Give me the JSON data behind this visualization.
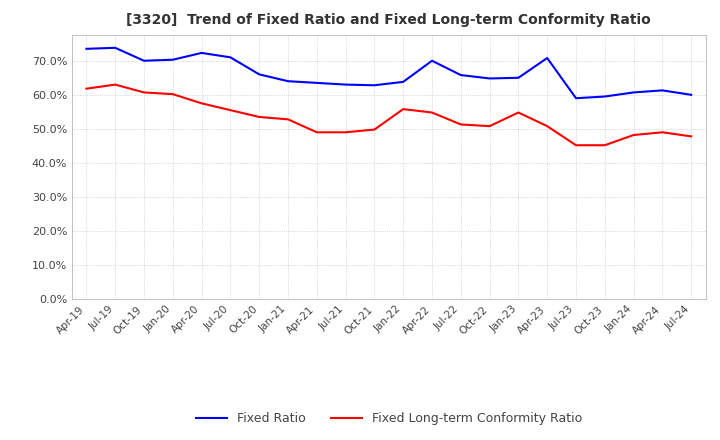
{
  "title": "[3320]  Trend of Fixed Ratio and Fixed Long-term Conformity Ratio",
  "x_labels": [
    "Apr-19",
    "Jul-19",
    "Oct-19",
    "Jan-20",
    "Apr-20",
    "Jul-20",
    "Oct-20",
    "Jan-21",
    "Apr-21",
    "Jul-21",
    "Oct-21",
    "Jan-22",
    "Apr-22",
    "Jul-22",
    "Oct-22",
    "Jan-23",
    "Apr-23",
    "Jul-23",
    "Oct-23",
    "Jan-24",
    "Apr-24",
    "Jul-24"
  ],
  "fixed_ratio": [
    0.735,
    0.738,
    0.7,
    0.703,
    0.723,
    0.71,
    0.66,
    0.64,
    0.635,
    0.63,
    0.628,
    0.638,
    0.7,
    0.658,
    0.648,
    0.65,
    0.708,
    0.59,
    0.595,
    0.607,
    0.613,
    0.6
  ],
  "fixed_lt_ratio": [
    0.618,
    0.63,
    0.607,
    0.602,
    0.575,
    0.555,
    0.535,
    0.528,
    0.49,
    0.49,
    0.498,
    0.558,
    0.548,
    0.513,
    0.508,
    0.548,
    0.508,
    0.452,
    0.452,
    0.482,
    0.49,
    0.478
  ],
  "fixed_ratio_color": "#0000FF",
  "fixed_lt_ratio_color": "#FF0000",
  "ylim_min": 0.0,
  "ylim_max": 0.775,
  "yticks": [
    0.0,
    0.1,
    0.2,
    0.3,
    0.4,
    0.5,
    0.6,
    0.7
  ],
  "grid_color": "#AAAAAA",
  "background_color": "#FFFFFF",
  "legend_fixed_ratio": "Fixed Ratio",
  "legend_fixed_lt_ratio": "Fixed Long-term Conformity Ratio"
}
